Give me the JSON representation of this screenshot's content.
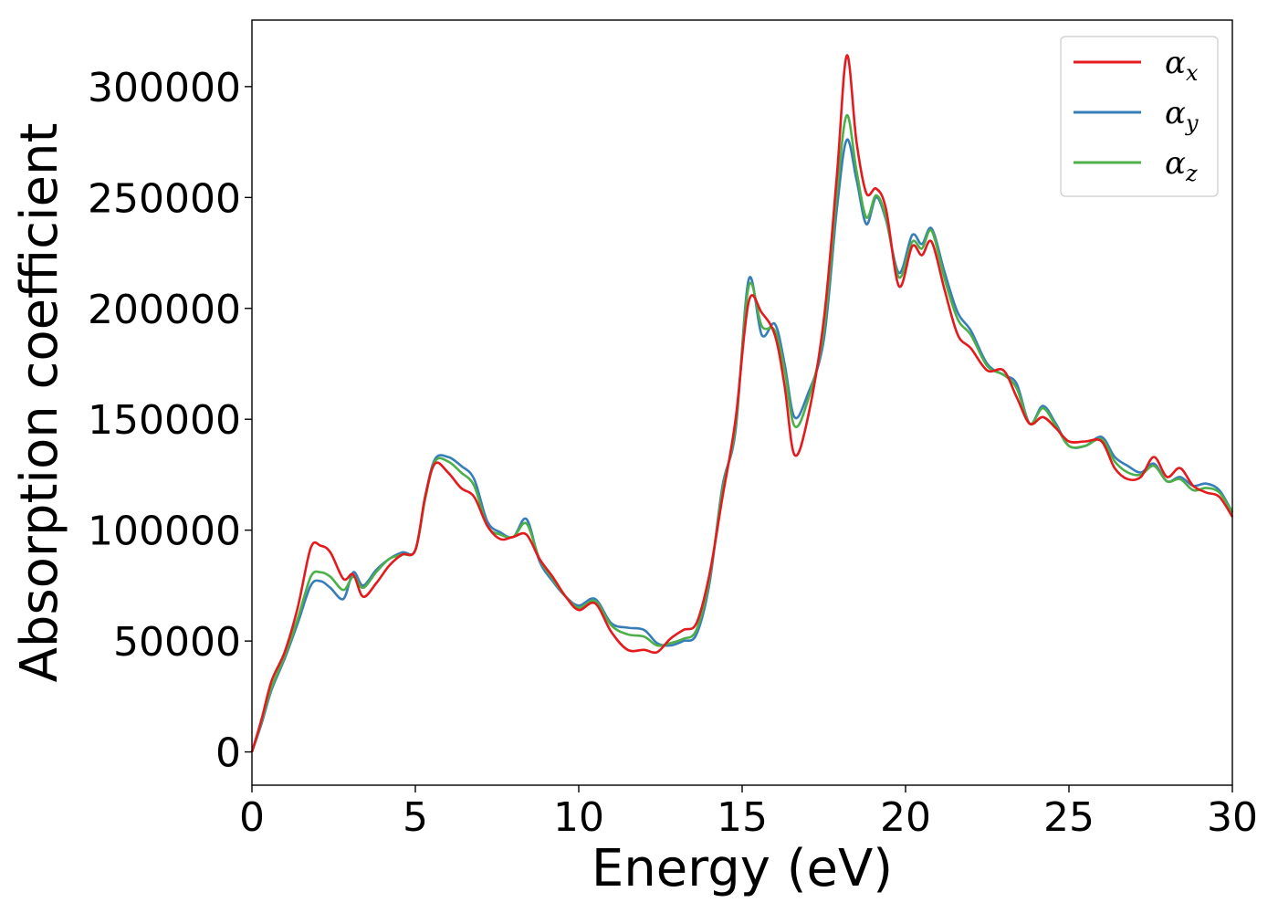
{
  "chart_data": {
    "type": "line",
    "xlabel": "Energy (eV)",
    "ylabel": "Absorption coefficient",
    "xlim": [
      0,
      30
    ],
    "ylim": [
      -15000,
      330000
    ],
    "x_ticks": [
      0,
      5,
      10,
      15,
      20,
      25,
      30
    ],
    "y_ticks": [
      0,
      50000,
      100000,
      150000,
      200000,
      250000,
      300000
    ],
    "grid": false,
    "legend_position": "top-right",
    "x": [
      0,
      0.3,
      0.6,
      1.0,
      1.4,
      1.8,
      2.1,
      2.4,
      2.8,
      3.1,
      3.4,
      3.8,
      4.2,
      4.6,
      5.0,
      5.3,
      5.6,
      6.0,
      6.4,
      6.8,
      7.2,
      7.6,
      8.0,
      8.4,
      8.8,
      9.2,
      9.6,
      10.0,
      10.5,
      11.0,
      11.5,
      12.0,
      12.4,
      12.8,
      13.2,
      13.6,
      14.0,
      14.4,
      14.8,
      15.2,
      15.6,
      16.0,
      16.3,
      16.6,
      17.0,
      17.5,
      17.9,
      18.2,
      18.5,
      18.8,
      19.1,
      19.4,
      19.8,
      20.2,
      20.5,
      20.8,
      21.2,
      21.6,
      22.0,
      22.5,
      23.0,
      23.4,
      23.8,
      24.2,
      24.6,
      25.0,
      25.5,
      26.0,
      26.4,
      26.8,
      27.2,
      27.6,
      28.0,
      28.4,
      28.8,
      29.2,
      29.6,
      30.0
    ],
    "series": [
      {
        "name": "α_x",
        "color": "#e41a1c",
        "values": [
          0,
          15000,
          32000,
          45000,
          65000,
          92000,
          93000,
          90000,
          78000,
          80000,
          70000,
          76000,
          84000,
          89000,
          91000,
          115000,
          130000,
          126000,
          119000,
          115000,
          102000,
          96000,
          97000,
          98000,
          87000,
          79000,
          70000,
          64000,
          67000,
          54000,
          46000,
          46000,
          45000,
          51000,
          55000,
          58000,
          80000,
          115000,
          150000,
          203000,
          198000,
          188000,
          165000,
          134000,
          150000,
          195000,
          260000,
          314000,
          275000,
          252000,
          254000,
          245000,
          210000,
          228000,
          224000,
          230000,
          208000,
          188000,
          182000,
          172000,
          172000,
          160000,
          148000,
          151000,
          146000,
          140000,
          140000,
          140000,
          128000,
          123000,
          124000,
          133000,
          124000,
          128000,
          120000,
          117000,
          115000,
          106000
        ]
      },
      {
        "name": "α_y",
        "color": "#377eb8",
        "values": [
          0,
          13000,
          28000,
          42000,
          58000,
          75000,
          77000,
          74000,
          69000,
          81000,
          75000,
          82000,
          87000,
          90000,
          91000,
          115000,
          132000,
          133000,
          129000,
          123000,
          104000,
          99000,
          97000,
          105000,
          86000,
          77000,
          70000,
          66000,
          69000,
          58000,
          56000,
          55000,
          49000,
          48000,
          50000,
          53000,
          76000,
          120000,
          145000,
          213000,
          188000,
          193000,
          175000,
          151000,
          161000,
          186000,
          245000,
          276000,
          258000,
          238000,
          250000,
          240000,
          216000,
          233000,
          229000,
          236000,
          216000,
          198000,
          190000,
          175000,
          170000,
          166000,
          148000,
          156000,
          148000,
          138000,
          138000,
          142000,
          133000,
          129000,
          126000,
          130000,
          122000,
          124000,
          120000,
          121000,
          118000,
          108000
        ]
      },
      {
        "name": "α_z",
        "color": "#4daf4a",
        "values": [
          0,
          14000,
          29000,
          43000,
          60000,
          79000,
          81000,
          79000,
          73000,
          79000,
          74000,
          81000,
          87000,
          89000,
          91000,
          114000,
          131000,
          131000,
          126000,
          120000,
          102000,
          98000,
          97000,
          103000,
          87000,
          78000,
          70000,
          65000,
          68000,
          57000,
          53000,
          52000,
          48000,
          49000,
          51000,
          55000,
          78000,
          118000,
          147000,
          210000,
          192000,
          190000,
          172000,
          147000,
          158000,
          190000,
          252000,
          287000,
          262000,
          241000,
          251000,
          241000,
          214000,
          230000,
          227000,
          235000,
          213000,
          195000,
          188000,
          174000,
          170000,
          164000,
          148000,
          155000,
          147000,
          138000,
          138000,
          141000,
          131000,
          126000,
          125000,
          129000,
          122000,
          123000,
          118000,
          119000,
          117000,
          108000
        ]
      }
    ]
  }
}
